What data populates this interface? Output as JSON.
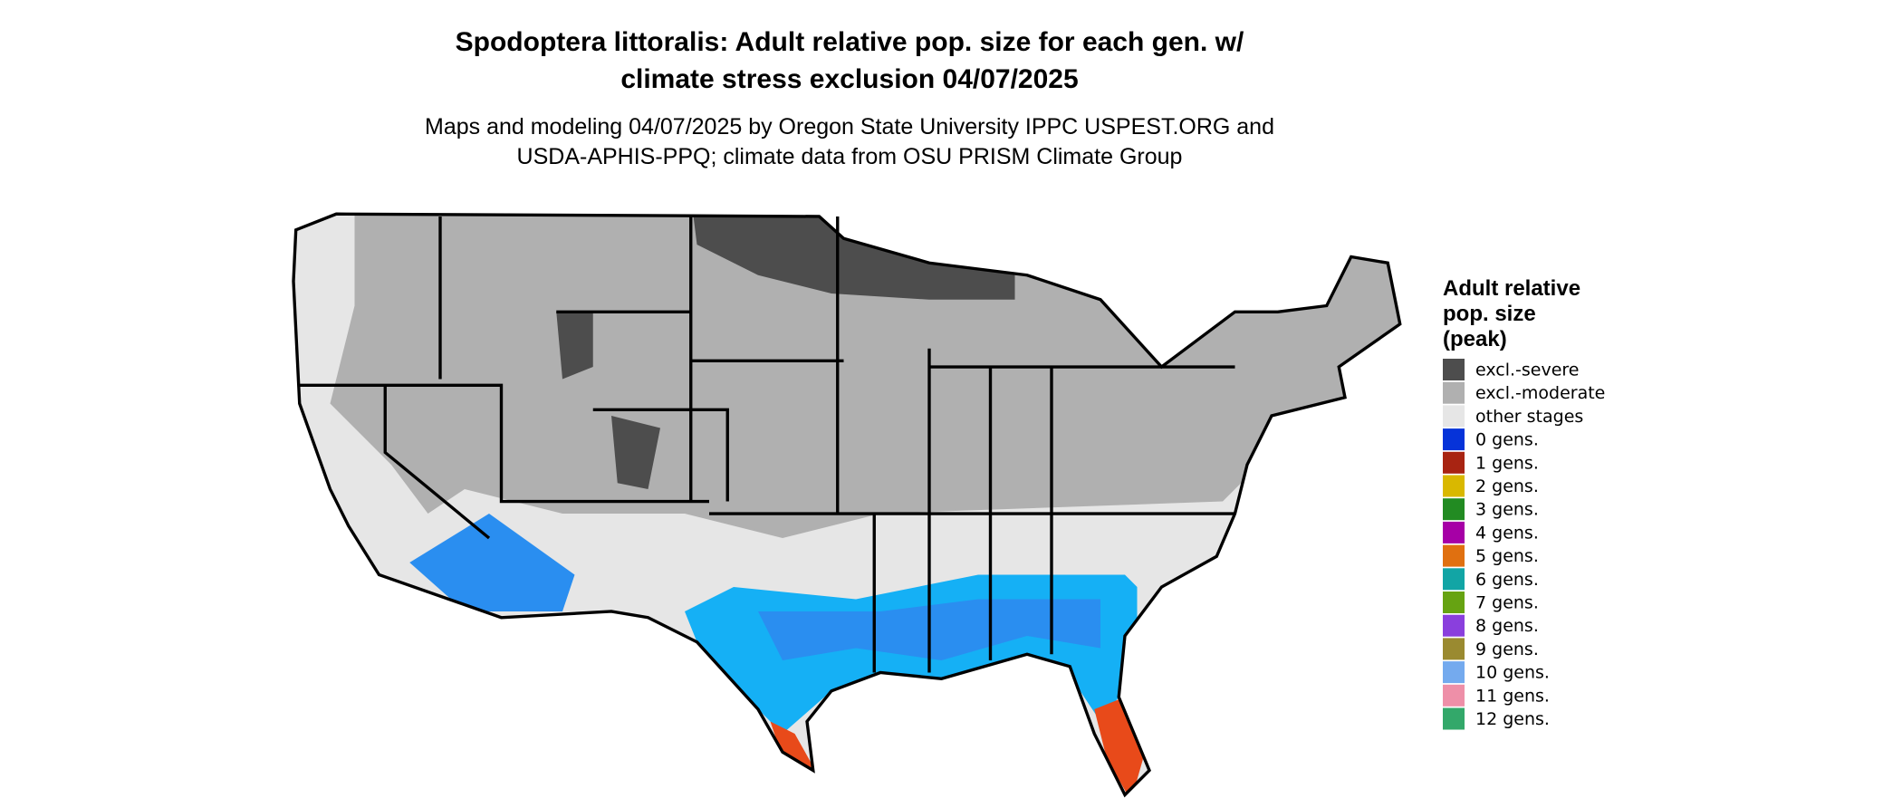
{
  "header": {
    "title": [
      "Spodoptera littoralis: Adult relative pop. size for each gen. w/",
      "climate stress exclusion 04/07/2025"
    ],
    "subtitle": [
      "Maps and modeling 04/07/2025 by Oregon State University IPPC USPEST.ORG and",
      "USDA-APHIS-PPQ; climate data from OSU PRISM Climate Group"
    ]
  },
  "legend": {
    "title": [
      "Adult relative",
      "pop. size",
      "(peak)"
    ],
    "items": [
      {
        "label": "excl.-severe",
        "color": "#4d4d4d"
      },
      {
        "label": "excl.-moderate",
        "color": "#b0b0b0"
      },
      {
        "label": "other stages",
        "color": "#e6e6e6"
      },
      {
        "label": "0 gens.",
        "color": "#0633d9"
      },
      {
        "label": "1 gens.",
        "color": "#a82412"
      },
      {
        "label": "2 gens.",
        "color": "#d9b800"
      },
      {
        "label": "3 gens.",
        "color": "#228b22"
      },
      {
        "label": "4 gens.",
        "color": "#a600a6"
      },
      {
        "label": "5 gens.",
        "color": "#e07010"
      },
      {
        "label": "6 gens.",
        "color": "#12a5a5"
      },
      {
        "label": "7 gens.",
        "color": "#66a312"
      },
      {
        "label": "8 gens.",
        "color": "#8a3fdd"
      },
      {
        "label": "9 gens.",
        "color": "#9a8a30"
      },
      {
        "label": "10 gens.",
        "color": "#74aaee"
      },
      {
        "label": "11 gens.",
        "color": "#ee8fa8"
      },
      {
        "label": "12 gens.",
        "color": "#33a86a"
      }
    ]
  }
}
